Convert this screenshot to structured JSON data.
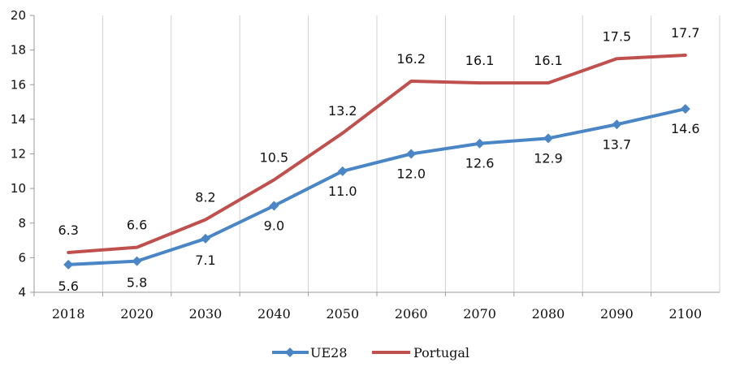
{
  "chart_data": {
    "type": "line",
    "categories": [
      "2018",
      "2020",
      "2030",
      "2040",
      "2050",
      "2060",
      "2070",
      "2080",
      "2090",
      "2100"
    ],
    "series": [
      {
        "name": "UE28",
        "color": "#4A86C5",
        "marker": "diamond",
        "values": [
          5.6,
          5.8,
          7.1,
          9.0,
          11.0,
          12.0,
          12.6,
          12.9,
          13.7,
          14.6
        ],
        "labels": [
          "5.6",
          "5.8",
          "7.1",
          "9.0",
          "11.0",
          "12.0",
          "12.6",
          "12.9",
          "13.7",
          "14.6"
        ]
      },
      {
        "name": "Portugal",
        "color": "#C0504D",
        "marker": "none",
        "values": [
          6.3,
          6.6,
          8.2,
          10.5,
          13.2,
          16.2,
          16.1,
          16.1,
          17.5,
          17.7
        ],
        "labels": [
          "6.3",
          "6.6",
          "8.2",
          "10.5",
          "13.2",
          "16.2",
          "16.1",
          "16.1",
          "17.5",
          "17.7"
        ]
      }
    ],
    "ylim": [
      4,
      20
    ],
    "yticks": [
      "4",
      "6",
      "8",
      "10",
      "12",
      "14",
      "16",
      "18",
      "20"
    ],
    "grid": "vertical",
    "legend": "bottom-center",
    "title": "",
    "xlabel": "",
    "ylabel": ""
  }
}
